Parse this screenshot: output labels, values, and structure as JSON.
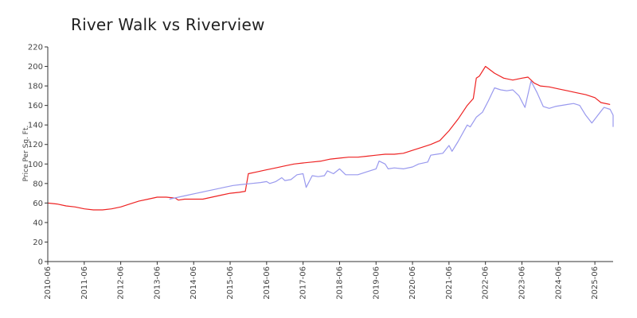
{
  "chart_data": {
    "type": "line",
    "title": "River Walk vs Riverview",
    "xlabel": "",
    "ylabel": "Price Per Sq. Ft.",
    "ylim": [
      0,
      220
    ],
    "yticks": [
      0,
      20,
      40,
      60,
      80,
      100,
      120,
      140,
      160,
      180,
      200,
      220
    ],
    "xlim": [
      "2010-06",
      "2025-12"
    ],
    "xticks": [
      "2010-06",
      "2011-06",
      "2012-06",
      "2013-06",
      "2014-06",
      "2015-06",
      "2016-06",
      "2017-06",
      "2018-06",
      "2019-06",
      "2020-06",
      "2021-06",
      "2022-06",
      "2023-06",
      "2024-06",
      "2025-06"
    ],
    "grid": false,
    "legend": "none",
    "series": [
      {
        "color": "#ee2222",
        "points": [
          [
            "2010-06",
            60
          ],
          [
            "2010-09",
            59
          ],
          [
            "2010-12",
            57
          ],
          [
            "2011-03",
            56
          ],
          [
            "2011-06",
            54
          ],
          [
            "2011-09",
            53
          ],
          [
            "2011-12",
            53
          ],
          [
            "2012-03",
            54
          ],
          [
            "2012-06",
            56
          ],
          [
            "2012-09",
            59
          ],
          [
            "2012-12",
            62
          ],
          [
            "2013-03",
            64
          ],
          [
            "2013-06",
            66
          ],
          [
            "2013-09",
            66
          ],
          [
            "2013-12",
            65
          ],
          [
            "2014-01",
            63
          ],
          [
            "2014-03",
            64
          ],
          [
            "2014-06",
            64
          ],
          [
            "2014-09",
            64
          ],
          [
            "2014-12",
            66
          ],
          [
            "2015-03",
            68
          ],
          [
            "2015-06",
            70
          ],
          [
            "2015-09",
            71
          ],
          [
            "2015-11",
            72
          ],
          [
            "2015-12",
            90
          ],
          [
            "2016-03",
            92
          ],
          [
            "2016-06",
            94
          ],
          [
            "2016-09",
            96
          ],
          [
            "2016-12",
            98
          ],
          [
            "2017-03",
            100
          ],
          [
            "2017-06",
            101
          ],
          [
            "2017-09",
            102
          ],
          [
            "2017-12",
            103
          ],
          [
            "2018-03",
            105
          ],
          [
            "2018-06",
            106
          ],
          [
            "2018-09",
            107
          ],
          [
            "2018-12",
            107
          ],
          [
            "2019-03",
            108
          ],
          [
            "2019-06",
            109
          ],
          [
            "2019-09",
            110
          ],
          [
            "2019-12",
            110
          ],
          [
            "2020-03",
            111
          ],
          [
            "2020-06",
            114
          ],
          [
            "2020-09",
            117
          ],
          [
            "2020-12",
            120
          ],
          [
            "2021-03",
            124
          ],
          [
            "2021-06",
            134
          ],
          [
            "2021-09",
            146
          ],
          [
            "2021-12",
            160
          ],
          [
            "2022-02",
            167
          ],
          [
            "2022-03",
            188
          ],
          [
            "2022-04",
            190
          ],
          [
            "2022-06",
            200
          ],
          [
            "2022-09",
            193
          ],
          [
            "2022-12",
            188
          ],
          [
            "2023-03",
            186
          ],
          [
            "2023-06",
            188
          ],
          [
            "2023-08",
            189
          ],
          [
            "2023-10",
            183
          ],
          [
            "2023-12",
            180
          ],
          [
            "2024-03",
            179
          ],
          [
            "2024-06",
            177
          ],
          [
            "2024-09",
            175
          ],
          [
            "2024-12",
            173
          ],
          [
            "2025-03",
            171
          ],
          [
            "2025-06",
            168
          ],
          [
            "2025-08",
            163
          ],
          [
            "2025-11",
            161
          ]
        ]
      },
      {
        "color": "#9999ee",
        "points": [
          [
            "2013-10",
            64
          ],
          [
            "2014-01",
            66
          ],
          [
            "2014-04",
            68
          ],
          [
            "2014-07",
            70
          ],
          [
            "2014-10",
            72
          ],
          [
            "2015-01",
            74
          ],
          [
            "2015-04",
            76
          ],
          [
            "2015-07",
            78
          ],
          [
            "2015-10",
            79
          ],
          [
            "2016-01",
            80
          ],
          [
            "2016-04",
            81
          ],
          [
            "2016-06",
            82
          ],
          [
            "2016-07",
            80
          ],
          [
            "2016-09",
            82
          ],
          [
            "2016-11",
            86
          ],
          [
            "2016-12",
            83
          ],
          [
            "2017-02",
            84
          ],
          [
            "2017-04",
            89
          ],
          [
            "2017-06",
            90
          ],
          [
            "2017-07",
            76
          ],
          [
            "2017-09",
            88
          ],
          [
            "2017-11",
            87
          ],
          [
            "2018-01",
            88
          ],
          [
            "2018-02",
            93
          ],
          [
            "2018-04",
            90
          ],
          [
            "2018-06",
            95
          ],
          [
            "2018-08",
            89
          ],
          [
            "2018-10",
            89
          ],
          [
            "2018-12",
            89
          ],
          [
            "2019-03",
            92
          ],
          [
            "2019-06",
            95
          ],
          [
            "2019-07",
            103
          ],
          [
            "2019-09",
            100
          ],
          [
            "2019-10",
            95
          ],
          [
            "2019-12",
            96
          ],
          [
            "2020-03",
            95
          ],
          [
            "2020-06",
            97
          ],
          [
            "2020-08",
            100
          ],
          [
            "2020-11",
            102
          ],
          [
            "2020-12",
            109
          ],
          [
            "2021-02",
            110
          ],
          [
            "2021-04",
            111
          ],
          [
            "2021-06",
            119
          ],
          [
            "2021-07",
            113
          ],
          [
            "2021-09",
            123
          ],
          [
            "2021-12",
            140
          ],
          [
            "2022-01",
            138
          ],
          [
            "2022-03",
            148
          ],
          [
            "2022-05",
            153
          ],
          [
            "2022-07",
            165
          ],
          [
            "2022-09",
            178
          ],
          [
            "2022-11",
            176
          ],
          [
            "2023-01",
            175
          ],
          [
            "2023-03",
            176
          ],
          [
            "2023-05",
            170
          ],
          [
            "2023-07",
            158
          ],
          [
            "2023-09",
            185
          ],
          [
            "2023-11",
            173
          ],
          [
            "2024-01",
            159
          ],
          [
            "2024-03",
            157
          ],
          [
            "2024-05",
            159
          ],
          [
            "2024-07",
            160
          ],
          [
            "2024-09",
            161
          ],
          [
            "2024-11",
            162
          ],
          [
            "2025-01",
            160
          ],
          [
            "2025-03",
            150
          ],
          [
            "2025-05",
            142
          ],
          [
            "2025-07",
            150
          ],
          [
            "2025-09",
            158
          ],
          [
            "2025-11",
            156
          ],
          [
            "2026-01",
            150
          ],
          [
            "2026-03",
            141
          ],
          [
            "2026-05",
            138
          ]
        ]
      }
    ]
  }
}
